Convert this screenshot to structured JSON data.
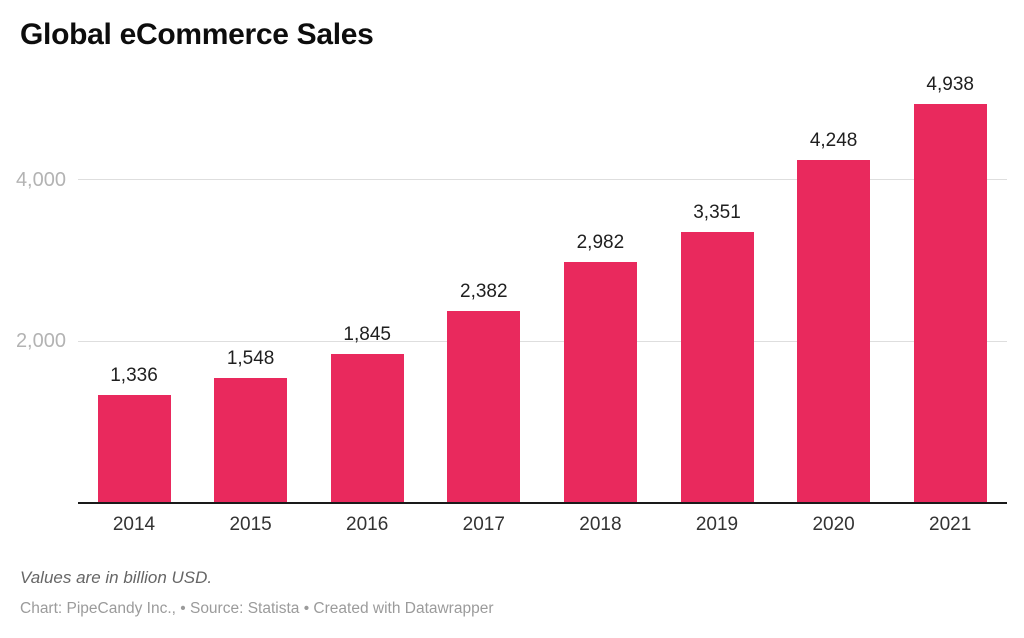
{
  "header": {
    "title": "Global eCommerce Sales"
  },
  "chart_data": {
    "type": "bar",
    "title": "Global eCommerce Sales",
    "categories": [
      "2014",
      "2015",
      "2016",
      "2017",
      "2018",
      "2019",
      "2020",
      "2021"
    ],
    "values": [
      1336,
      1548,
      1845,
      2382,
      2982,
      3351,
      4248,
      4938
    ],
    "value_labels": [
      "1,336",
      "1,548",
      "1,845",
      "2,382",
      "2,982",
      "3,351",
      "4,248",
      "4,938"
    ],
    "xlabel": "",
    "ylabel": "",
    "ylim": [
      0,
      5000
    ],
    "yticks": [
      2000,
      4000
    ],
    "ytick_labels": [
      "2,000",
      "4,000"
    ],
    "grid": true,
    "legend": "none",
    "bar_color": "#e9295d",
    "grid_color": "#dedede",
    "axis_line_color": "#1a1a1a",
    "ytick_label_color": "#b3b3b3",
    "xtick_label_color": "#333333",
    "value_label_color": "#1f1f1f"
  },
  "footer": {
    "note": "Values are in billion USD.",
    "credit": "Chart: PipeCandy Inc., • Source: Statista • Created with Datawrapper"
  }
}
